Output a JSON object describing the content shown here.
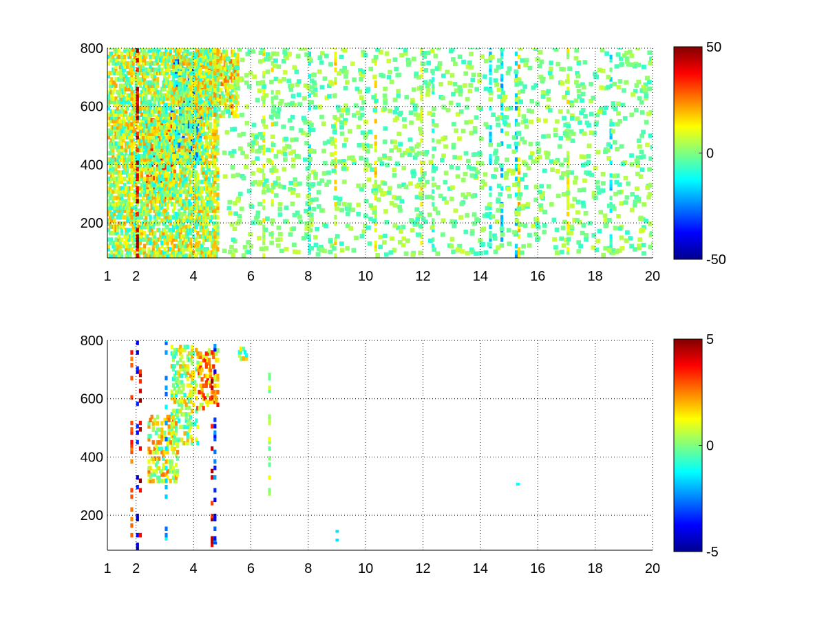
{
  "chart_data": [
    {
      "type": "heatmap",
      "title": "",
      "xlabel": "",
      "ylabel": "",
      "xlim": [
        1,
        20
      ],
      "ylim": [
        80,
        800
      ],
      "xticks": [
        1,
        2,
        4,
        6,
        8,
        10,
        12,
        14,
        16,
        18,
        20
      ],
      "xtick_labels": [
        "1",
        "2",
        "4",
        "6",
        "8",
        "10",
        "12",
        "14",
        "16",
        "18",
        "20"
      ],
      "yticks": [
        200,
        400,
        600,
        800
      ],
      "ytick_labels": [
        "200",
        "400",
        "600",
        "800"
      ],
      "grid": true,
      "colormap": "jet",
      "colorbar": {
        "min": -50,
        "max": 50,
        "ticks": [
          -50,
          0,
          50
        ],
        "tick_labels": [
          "-50",
          "0",
          "50"
        ]
      },
      "features": [
        {
          "x_range": [
            2.3,
            3.3
          ],
          "y_range": [
            280,
            560
          ],
          "value": 25
        },
        {
          "x_range": [
            3.2,
            4.2
          ],
          "y_range": [
            400,
            760
          ],
          "value": -20
        },
        {
          "x_range": [
            4.0,
            5.5
          ],
          "y_range": [
            560,
            790
          ],
          "value": 10
        },
        {
          "x_range": [
            1.0,
            4.8
          ],
          "y_range": [
            80,
            800
          ],
          "value": 5
        }
      ],
      "sparse_columns": [
        {
          "x": 1.8,
          "value": 15
        },
        {
          "x": 2.0,
          "value": 40
        },
        {
          "x": 4.7,
          "value": 15
        },
        {
          "x": 6.4,
          "value": 10
        },
        {
          "x": 6.7,
          "value": 8
        },
        {
          "x": 8.0,
          "value": -8
        },
        {
          "x": 8.9,
          "value": 12
        },
        {
          "x": 10.3,
          "value": 12
        },
        {
          "x": 11.9,
          "value": 10
        },
        {
          "x": 12.3,
          "value": -5
        },
        {
          "x": 14.3,
          "value": -12
        },
        {
          "x": 14.7,
          "value": -15
        },
        {
          "x": 15.2,
          "value": -18
        },
        {
          "x": 15.3,
          "value": 14
        },
        {
          "x": 17.0,
          "value": 8
        },
        {
          "x": 18.5,
          "value": -10
        }
      ]
    },
    {
      "type": "heatmap",
      "title": "",
      "xlabel": "",
      "ylabel": "",
      "xlim": [
        1,
        20
      ],
      "ylim": [
        80,
        800
      ],
      "xticks": [
        1,
        2,
        4,
        6,
        8,
        10,
        12,
        14,
        16,
        18,
        20
      ],
      "xtick_labels": [
        "1",
        "2",
        "4",
        "6",
        "8",
        "10",
        "12",
        "14",
        "16",
        "18",
        "20"
      ],
      "yticks": [
        200,
        400,
        600,
        800
      ],
      "ytick_labels": [
        "200",
        "400",
        "600",
        "800"
      ],
      "grid": true,
      "colormap": "jet",
      "colorbar": {
        "min": -5,
        "max": 5,
        "ticks": [
          -5,
          0,
          5
        ],
        "tick_labels": [
          "-5",
          "0",
          "5"
        ]
      },
      "features": [
        {
          "x_range": [
            2.4,
            3.4
          ],
          "y_range": [
            310,
            540
          ],
          "value": 1
        },
        {
          "x_range": [
            3.2,
            4.1
          ],
          "y_range": [
            440,
            780
          ],
          "value": 0.5
        },
        {
          "x_range": [
            4.1,
            4.8
          ],
          "y_range": [
            560,
            760
          ],
          "value": 2
        },
        {
          "x_range": [
            5.5,
            5.8
          ],
          "y_range": [
            730,
            770
          ],
          "value": 0.5
        }
      ],
      "sparse_columns": [
        {
          "x": 1.8,
          "value": 3
        },
        {
          "x": 2.0,
          "value": -4
        },
        {
          "x": 2.1,
          "value": 4
        },
        {
          "x": 3.0,
          "value": -2
        },
        {
          "x": 4.6,
          "value": 4
        },
        {
          "x": 4.7,
          "value": -3
        },
        {
          "x": 6.6,
          "value": 0.5
        }
      ],
      "points": [
        {
          "x": 8.95,
          "y": 140,
          "value": -1.5
        },
        {
          "x": 8.95,
          "y": 110,
          "value": -1.5
        },
        {
          "x": 15.25,
          "y": 302,
          "value": -1.2
        },
        {
          "x": 4.7,
          "y": 100,
          "value": -3
        }
      ]
    }
  ]
}
